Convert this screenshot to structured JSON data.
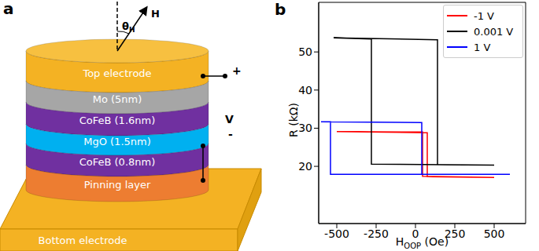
{
  "panels": [
    "a",
    "b"
  ],
  "diagram": {
    "field": "H",
    "field_angle": {
      "text": "θ",
      "subscript": "H"
    },
    "voltage": {
      "label": "V",
      "plus": "+",
      "minus": "-"
    },
    "layers": [
      "Top electrode",
      "Mo (5nm)",
      "CoFeB (1.6nm)",
      "MgO (1.5nm)",
      "CoFeB (0.8nm)",
      "Pinning layer"
    ],
    "base": "Bottom electrode"
  },
  "chart_data": {
    "type": "line",
    "xlabel": {
      "text": "H",
      "subscript": "OOP",
      "unit": " (Oe)"
    },
    "ylabel": "R (kΩ)",
    "xlim": [
      -615,
      700
    ],
    "ylim": [
      5,
      63
    ],
    "xticks": [
      -500,
      -250,
      0,
      250,
      500
    ],
    "yticks": [
      20,
      30,
      40,
      50
    ],
    "legend": "upper right",
    "series": [
      {
        "name": "-1 V",
        "color": "#ff0000",
        "x": [
          -500,
          75,
          75,
          500,
          45,
          45,
          -500
        ],
        "values": [
          29.1,
          28.8,
          17.3,
          17.1,
          17.4,
          29.0,
          29.1
        ]
      },
      {
        "name": "0.001 V",
        "color": "#000000",
        "x": [
          -520,
          140,
          140,
          500,
          -280,
          -280,
          -520
        ],
        "values": [
          53.7,
          53.2,
          20.4,
          20.3,
          20.6,
          53.4,
          53.7
        ]
      },
      {
        "name": "1 V",
        "color": "#0000ff",
        "x": [
          -600,
          40,
          40,
          600,
          -540,
          -540,
          -600
        ],
        "values": [
          31.7,
          31.5,
          17.9,
          17.9,
          17.9,
          31.7,
          31.7
        ]
      }
    ]
  }
}
